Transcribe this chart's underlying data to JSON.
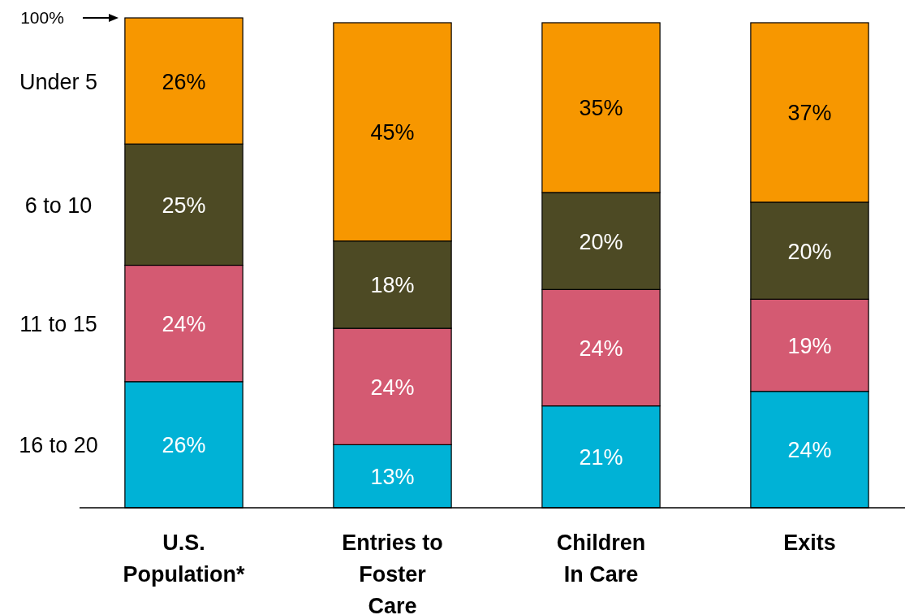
{
  "chart_data": {
    "type": "bar",
    "stacked": true,
    "categories": [
      "U.S. Population*",
      "Entries to Foster Care",
      "Children In Care",
      "Exits"
    ],
    "series": [
      {
        "name": "16 to 20",
        "color": "#00b2d6",
        "values": [
          26,
          13,
          21,
          24
        ],
        "value_labels": [
          "26%",
          "13%",
          "21%",
          "24%"
        ]
      },
      {
        "name": "11 to 15",
        "color": "#d45a72",
        "values": [
          24,
          24,
          24,
          19
        ],
        "value_labels": [
          "24%",
          "24%",
          "24%",
          "19%"
        ]
      },
      {
        "name": "6 to 10",
        "color": "#4d4a24",
        "values": [
          25,
          18,
          20,
          20
        ],
        "value_labels": [
          "25%",
          "18%",
          "20%",
          "20%"
        ]
      },
      {
        "name": "Under 5",
        "color": "#f79700",
        "values": [
          26,
          45,
          35,
          37
        ],
        "value_labels": [
          "26%",
          "45%",
          "35%",
          "37%"
        ]
      }
    ],
    "ylim": [
      0,
      101
    ],
    "annotations": [
      "100%"
    ],
    "legend": "left"
  }
}
